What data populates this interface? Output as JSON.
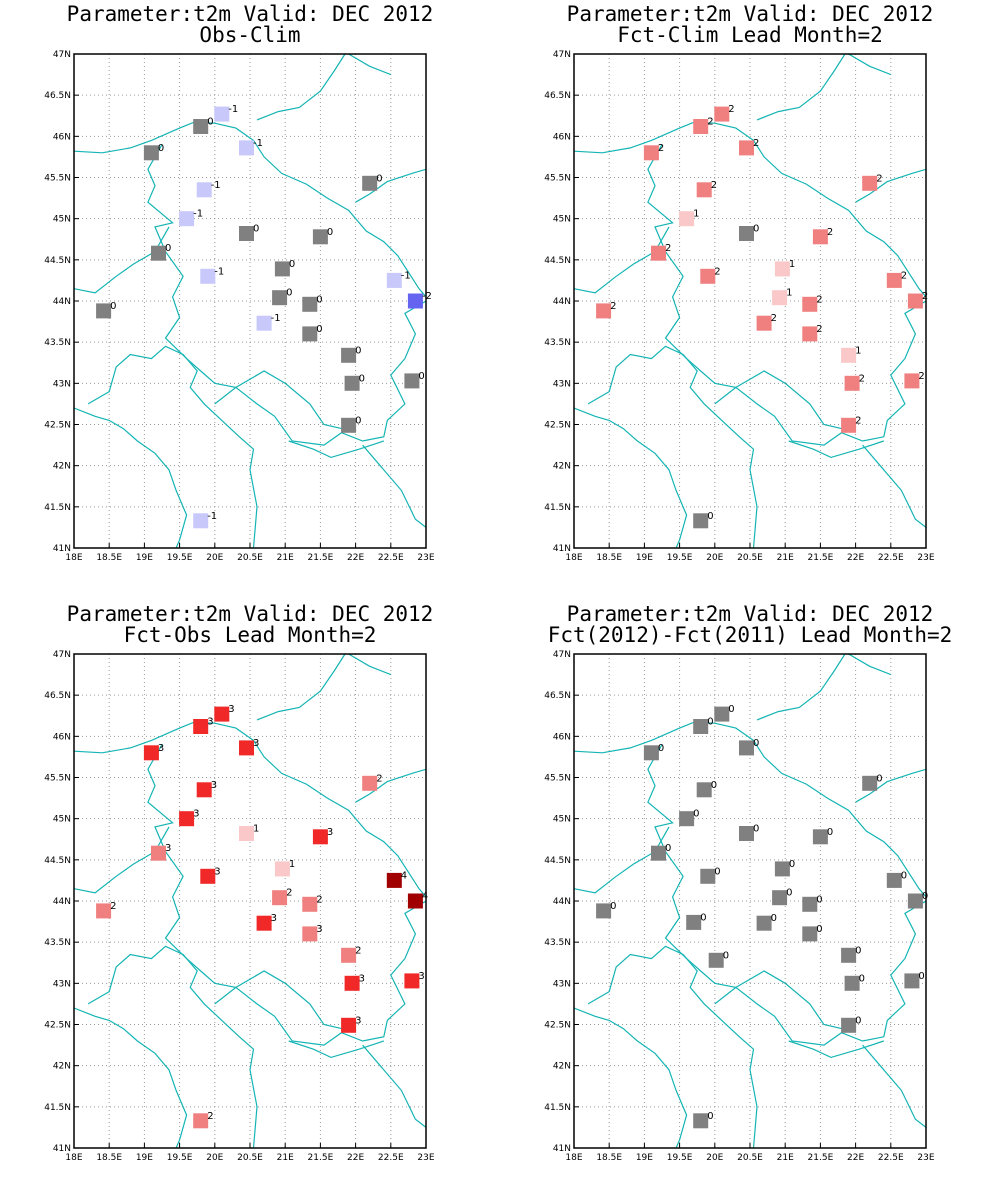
{
  "map": {
    "lon_range": [
      18,
      23
    ],
    "lat_range": [
      41,
      47
    ],
    "lon_ticks": [
      "18E",
      "18.5E",
      "19E",
      "19.5E",
      "20E",
      "20.5E",
      "21E",
      "21.5E",
      "22E",
      "22.5E",
      "23E"
    ],
    "lat_ticks": [
      "41N",
      "41.5N",
      "42N",
      "42.5N",
      "43N",
      "43.5N",
      "44N",
      "44.5N",
      "45N",
      "45.5N",
      "46N",
      "46.5N",
      "47N"
    ],
    "grid": true,
    "boundary_color": "#14b4b4"
  },
  "colors": {
    "neutral": "#808080",
    "neg1": "#c8c8fa",
    "neg2": "#6464f0",
    "pos1": "#fac8c8",
    "pos2": "#f08080",
    "pos3": "#f02828",
    "pos4": "#a00000"
  },
  "panels": [
    {
      "title_line1": "Parameter:t2m Valid: DEC 2012",
      "title_line2": "Obs-Clim",
      "points": [
        {
          "lon": 20.1,
          "lat": 46.27,
          "v": "-1",
          "c": "neg1"
        },
        {
          "lon": 19.8,
          "lat": 46.12,
          "v": "0",
          "c": "neutral"
        },
        {
          "lon": 20.45,
          "lat": 45.86,
          "v": "-1",
          "c": "neg1"
        },
        {
          "lon": 19.1,
          "lat": 45.8,
          "v": "0",
          "c": "neutral"
        },
        {
          "lon": 22.2,
          "lat": 45.43,
          "v": "0",
          "c": "neutral"
        },
        {
          "lon": 19.85,
          "lat": 45.35,
          "v": "-1",
          "c": "neg1"
        },
        {
          "lon": 19.6,
          "lat": 45.0,
          "v": "-1",
          "c": "neg1"
        },
        {
          "lon": 20.45,
          "lat": 44.82,
          "v": "0",
          "c": "neutral"
        },
        {
          "lon": 21.5,
          "lat": 44.78,
          "v": "0",
          "c": "neutral"
        },
        {
          "lon": 19.2,
          "lat": 44.58,
          "v": "0",
          "c": "neutral"
        },
        {
          "lon": 20.96,
          "lat": 44.39,
          "v": "0",
          "c": "neutral"
        },
        {
          "lon": 19.9,
          "lat": 44.3,
          "v": "-1",
          "c": "neg1"
        },
        {
          "lon": 22.55,
          "lat": 44.25,
          "v": "-1",
          "c": "neg1"
        },
        {
          "lon": 20.92,
          "lat": 44.04,
          "v": "0",
          "c": "neutral"
        },
        {
          "lon": 22.85,
          "lat": 44.0,
          "v": "-2",
          "c": "neg2"
        },
        {
          "lon": 21.35,
          "lat": 43.96,
          "v": "0",
          "c": "neutral"
        },
        {
          "lon": 18.42,
          "lat": 43.88,
          "v": "0",
          "c": "neutral"
        },
        {
          "lon": 20.7,
          "lat": 43.73,
          "v": "-1",
          "c": "neg1"
        },
        {
          "lon": 21.35,
          "lat": 43.6,
          "v": "0",
          "c": "neutral"
        },
        {
          "lon": 21.9,
          "lat": 43.34,
          "v": "0",
          "c": "neutral"
        },
        {
          "lon": 21.95,
          "lat": 43.0,
          "v": "0",
          "c": "neutral"
        },
        {
          "lon": 22.8,
          "lat": 43.03,
          "v": "0",
          "c": "neutral"
        },
        {
          "lon": 21.9,
          "lat": 42.49,
          "v": "0",
          "c": "neutral"
        },
        {
          "lon": 19.8,
          "lat": 41.33,
          "v": "-1",
          "c": "neg1"
        }
      ]
    },
    {
      "title_line1": "Parameter:t2m Valid: DEC 2012",
      "title_line2": "Fct-Clim Lead Month=2",
      "points": [
        {
          "lon": 20.1,
          "lat": 46.27,
          "v": "2",
          "c": "pos2"
        },
        {
          "lon": 19.8,
          "lat": 46.12,
          "v": "2",
          "c": "pos2"
        },
        {
          "lon": 20.45,
          "lat": 45.86,
          "v": "2",
          "c": "pos2"
        },
        {
          "lon": 19.1,
          "lat": 45.8,
          "v": "2",
          "c": "pos2"
        },
        {
          "lon": 22.2,
          "lat": 45.43,
          "v": "2",
          "c": "pos2"
        },
        {
          "lon": 19.85,
          "lat": 45.35,
          "v": "2",
          "c": "pos2"
        },
        {
          "lon": 19.6,
          "lat": 45.0,
          "v": "1",
          "c": "pos1"
        },
        {
          "lon": 20.45,
          "lat": 44.82,
          "v": "0",
          "c": "neutral"
        },
        {
          "lon": 21.5,
          "lat": 44.78,
          "v": "2",
          "c": "pos2"
        },
        {
          "lon": 19.2,
          "lat": 44.58,
          "v": "2",
          "c": "pos2"
        },
        {
          "lon": 20.96,
          "lat": 44.39,
          "v": "1",
          "c": "pos1"
        },
        {
          "lon": 19.9,
          "lat": 44.3,
          "v": "2",
          "c": "pos2"
        },
        {
          "lon": 22.55,
          "lat": 44.25,
          "v": "2",
          "c": "pos2"
        },
        {
          "lon": 20.92,
          "lat": 44.04,
          "v": "1",
          "c": "pos1"
        },
        {
          "lon": 22.85,
          "lat": 44.0,
          "v": "2",
          "c": "pos2"
        },
        {
          "lon": 21.35,
          "lat": 43.96,
          "v": "2",
          "c": "pos2"
        },
        {
          "lon": 18.42,
          "lat": 43.88,
          "v": "2",
          "c": "pos2"
        },
        {
          "lon": 20.7,
          "lat": 43.73,
          "v": "2",
          "c": "pos2"
        },
        {
          "lon": 21.35,
          "lat": 43.6,
          "v": "2",
          "c": "pos2"
        },
        {
          "lon": 21.9,
          "lat": 43.34,
          "v": "1",
          "c": "pos1"
        },
        {
          "lon": 21.95,
          "lat": 43.0,
          "v": "2",
          "c": "pos2"
        },
        {
          "lon": 22.8,
          "lat": 43.03,
          "v": "2",
          "c": "pos2"
        },
        {
          "lon": 21.9,
          "lat": 42.49,
          "v": "2",
          "c": "pos2"
        },
        {
          "lon": 19.8,
          "lat": 41.33,
          "v": "0",
          "c": "neutral"
        }
      ]
    },
    {
      "title_line1": "Parameter:t2m Valid: DEC 2012",
      "title_line2": "Fct-Obs Lead Month=2",
      "points": [
        {
          "lon": 20.1,
          "lat": 46.27,
          "v": "3",
          "c": "pos3"
        },
        {
          "lon": 19.8,
          "lat": 46.12,
          "v": "3",
          "c": "pos3"
        },
        {
          "lon": 20.45,
          "lat": 45.86,
          "v": "3",
          "c": "pos3"
        },
        {
          "lon": 19.1,
          "lat": 45.8,
          "v": "3",
          "c": "pos3"
        },
        {
          "lon": 22.2,
          "lat": 45.43,
          "v": "2",
          "c": "pos2"
        },
        {
          "lon": 19.85,
          "lat": 45.35,
          "v": "3",
          "c": "pos3"
        },
        {
          "lon": 19.6,
          "lat": 45.0,
          "v": "3",
          "c": "pos3"
        },
        {
          "lon": 20.45,
          "lat": 44.82,
          "v": "1",
          "c": "pos1"
        },
        {
          "lon": 21.5,
          "lat": 44.78,
          "v": "3",
          "c": "pos3"
        },
        {
          "lon": 19.2,
          "lat": 44.58,
          "v": "3",
          "c": "pos2"
        },
        {
          "lon": 20.96,
          "lat": 44.39,
          "v": "1",
          "c": "pos1"
        },
        {
          "lon": 19.9,
          "lat": 44.3,
          "v": "3",
          "c": "pos3"
        },
        {
          "lon": 22.55,
          "lat": 44.25,
          "v": "4",
          "c": "pos4"
        },
        {
          "lon": 20.92,
          "lat": 44.04,
          "v": "2",
          "c": "pos2"
        },
        {
          "lon": 22.85,
          "lat": 44.0,
          "v": "4",
          "c": "pos4"
        },
        {
          "lon": 21.35,
          "lat": 43.96,
          "v": "2",
          "c": "pos2"
        },
        {
          "lon": 18.42,
          "lat": 43.88,
          "v": "2",
          "c": "pos2"
        },
        {
          "lon": 20.7,
          "lat": 43.73,
          "v": "3",
          "c": "pos3"
        },
        {
          "lon": 21.35,
          "lat": 43.6,
          "v": "3",
          "c": "pos2"
        },
        {
          "lon": 21.9,
          "lat": 43.34,
          "v": "2",
          "c": "pos2"
        },
        {
          "lon": 21.95,
          "lat": 43.0,
          "v": "3",
          "c": "pos3"
        },
        {
          "lon": 22.8,
          "lat": 43.03,
          "v": "3",
          "c": "pos3"
        },
        {
          "lon": 21.9,
          "lat": 42.49,
          "v": "3",
          "c": "pos3"
        },
        {
          "lon": 19.8,
          "lat": 41.33,
          "v": "2",
          "c": "pos2"
        }
      ]
    },
    {
      "title_line1": "Parameter:t2m Valid: DEC 2012",
      "title_line2": "Fct(2012)-Fct(2011) Lead Month=2",
      "points": [
        {
          "lon": 20.1,
          "lat": 46.27,
          "v": "0",
          "c": "neutral"
        },
        {
          "lon": 19.8,
          "lat": 46.12,
          "v": "0",
          "c": "neutral"
        },
        {
          "lon": 20.45,
          "lat": 45.86,
          "v": "0",
          "c": "neutral"
        },
        {
          "lon": 19.1,
          "lat": 45.8,
          "v": "0",
          "c": "neutral"
        },
        {
          "lon": 22.2,
          "lat": 45.43,
          "v": "0",
          "c": "neutral"
        },
        {
          "lon": 19.85,
          "lat": 45.35,
          "v": "0",
          "c": "neutral"
        },
        {
          "lon": 19.6,
          "lat": 45.0,
          "v": "0",
          "c": "neutral"
        },
        {
          "lon": 20.45,
          "lat": 44.82,
          "v": "0",
          "c": "neutral"
        },
        {
          "lon": 21.5,
          "lat": 44.78,
          "v": "0",
          "c": "neutral"
        },
        {
          "lon": 19.2,
          "lat": 44.58,
          "v": "0",
          "c": "neutral"
        },
        {
          "lon": 20.96,
          "lat": 44.39,
          "v": "0",
          "c": "neutral"
        },
        {
          "lon": 19.9,
          "lat": 44.3,
          "v": "0",
          "c": "neutral"
        },
        {
          "lon": 22.55,
          "lat": 44.25,
          "v": "0",
          "c": "neutral"
        },
        {
          "lon": 20.92,
          "lat": 44.04,
          "v": "0",
          "c": "neutral"
        },
        {
          "lon": 22.85,
          "lat": 44.0,
          "v": "0",
          "c": "neutral"
        },
        {
          "lon": 21.35,
          "lat": 43.96,
          "v": "0",
          "c": "neutral"
        },
        {
          "lon": 18.42,
          "lat": 43.88,
          "v": "0",
          "c": "neutral"
        },
        {
          "lon": 19.7,
          "lat": 43.74,
          "v": "0",
          "c": "neutral"
        },
        {
          "lon": 20.7,
          "lat": 43.73,
          "v": "0",
          "c": "neutral"
        },
        {
          "lon": 21.35,
          "lat": 43.6,
          "v": "0",
          "c": "neutral"
        },
        {
          "lon": 21.9,
          "lat": 43.34,
          "v": "0",
          "c": "neutral"
        },
        {
          "lon": 20.02,
          "lat": 43.28,
          "v": "0",
          "c": "neutral"
        },
        {
          "lon": 21.95,
          "lat": 43.0,
          "v": "0",
          "c": "neutral"
        },
        {
          "lon": 22.8,
          "lat": 43.03,
          "v": "0",
          "c": "neutral"
        },
        {
          "lon": 21.9,
          "lat": 42.49,
          "v": "0",
          "c": "neutral"
        },
        {
          "lon": 19.8,
          "lat": 41.33,
          "v": "0",
          "c": "neutral"
        }
      ]
    }
  ]
}
